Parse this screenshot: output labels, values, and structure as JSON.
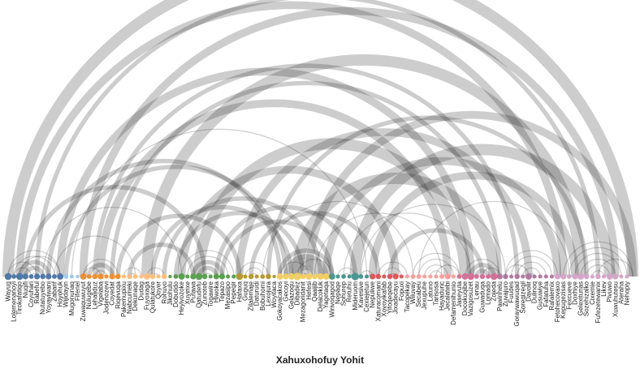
{
  "title": "Xahuxohofuy Yohit",
  "colors": {
    "arc": "#1a1a1a",
    "groups": [
      "#4e79a7",
      "#f28e2b",
      "#a0cbe8",
      "#ffbe7d",
      "#59a14f",
      "#b6992d",
      "#f1ce63",
      "#499894",
      "#e15759",
      "#ff9d9a",
      "#d37295",
      "#b07aa1",
      "#d4a6c8"
    ]
  },
  "nodes": [
    {
      "label": "Wayug",
      "group": 0
    },
    {
      "label": "Lolemenanoyi",
      "group": 0
    },
    {
      "label": "Tirokafatiqo",
      "group": 0
    },
    {
      "label": "Nuqifi",
      "group": 0
    },
    {
      "label": "Coyuhari",
      "group": 0
    },
    {
      "label": "Rabeful",
      "group": 0
    },
    {
      "label": "Nutatuyebo",
      "group": 0
    },
    {
      "label": "Yoyaviwani",
      "group": 0
    },
    {
      "label": "Zabarif",
      "group": 0
    },
    {
      "label": "Hoyohuk",
      "group": 0
    },
    {
      "label": "Wijidayin",
      "group": 2
    },
    {
      "label": "Mugonunaq",
      "group": 2
    },
    {
      "label": "Fifenel",
      "group": 2
    },
    {
      "label": "Zuwaquwuyut",
      "group": 1
    },
    {
      "label": "Nulugebe",
      "group": 1
    },
    {
      "label": "Lehaliduz",
      "group": 1
    },
    {
      "label": "Vigelaba",
      "group": 1
    },
    {
      "label": "Jodenozevi",
      "group": 1
    },
    {
      "label": "Coyedat",
      "group": 1
    },
    {
      "label": "Riqevuqa",
      "group": 1
    },
    {
      "label": "Pakemupixu",
      "group": 3
    },
    {
      "label": "Nabcumeki",
      "group": 3
    },
    {
      "label": "Dekunaqe",
      "group": 3
    },
    {
      "label": "Dudag",
      "group": 3
    },
    {
      "label": "Fuyoxaga",
      "group": 3
    },
    {
      "label": "Qulatukore",
      "group": 3
    },
    {
      "label": "Qoyer",
      "group": 3
    },
    {
      "label": "Rohuvo",
      "group": 3
    },
    {
      "label": "Jikohulu",
      "group": 4
    },
    {
      "label": "Dobutido",
      "group": 4
    },
    {
      "label": "Heyivozoke",
      "group": 4
    },
    {
      "label": "Xuyirixe",
      "group": 4
    },
    {
      "label": "Pufawa",
      "group": 4
    },
    {
      "label": "Qatudefu",
      "group": 4
    },
    {
      "label": "Zunoteb",
      "group": 4
    },
    {
      "label": "Togawire",
      "group": 4
    },
    {
      "label": "Hiwoka",
      "group": 4
    },
    {
      "label": "Tepazo",
      "group": 4
    },
    {
      "label": "Mezasipo",
      "group": 4
    },
    {
      "label": "Pepeqir",
      "group": 4
    },
    {
      "label": "Hafaxa",
      "group": 5
    },
    {
      "label": "Guguq",
      "group": 5
    },
    {
      "label": "Zilalemaje",
      "group": 5
    },
    {
      "label": "Daturudi",
      "group": 5
    },
    {
      "label": "Bobuhomi",
      "group": 5
    },
    {
      "label": "Lexojura",
      "group": 5
    },
    {
      "label": "Woyitaca",
      "group": 5
    },
    {
      "label": "Gokoyacakos",
      "group": 6
    },
    {
      "label": "Gecoyi",
      "group": 6
    },
    {
      "label": "Gelazoqu",
      "group": 6
    },
    {
      "label": "Dibadez",
      "group": 6
    },
    {
      "label": "Mezagoridanit",
      "group": 6
    },
    {
      "label": "Hefesi",
      "group": 6
    },
    {
      "label": "Qaaijib",
      "group": 6
    },
    {
      "label": "Delacokuk",
      "group": 6
    },
    {
      "label": "Yagetaqa",
      "group": 6
    },
    {
      "label": "Wirivoqagod",
      "group": 7
    },
    {
      "label": "Nepaqe",
      "group": 7
    },
    {
      "label": "Sohurep",
      "group": 7
    },
    {
      "label": "Retuhu",
      "group": 7
    },
    {
      "label": "Mideruom",
      "group": 7
    },
    {
      "label": "Kavesive",
      "group": 7
    },
    {
      "label": "Cexiejetun",
      "group": 7
    },
    {
      "label": "Nepuliwe",
      "group": 8
    },
    {
      "label": "Xaturacomani",
      "group": 8
    },
    {
      "label": "Xovoyikafab",
      "group": 8
    },
    {
      "label": "Yifoqeqebe",
      "group": 8
    },
    {
      "label": "Jixadecayu",
      "group": 8
    },
    {
      "label": "Fopuxi",
      "group": 8
    },
    {
      "label": "Tacopekay",
      "group": 9
    },
    {
      "label": "Wiluvay",
      "group": 9
    },
    {
      "label": "Secabeu",
      "group": 9
    },
    {
      "label": "Jexupuhe",
      "group": 9
    },
    {
      "label": "Latuno",
      "group": 9
    },
    {
      "label": "Tarisosa",
      "group": 9
    },
    {
      "label": "Hayaduric",
      "group": 9
    },
    {
      "label": "Jecalatebi",
      "group": 9
    },
    {
      "label": "Defamenihunio",
      "group": 9
    },
    {
      "label": "Jaseyuta",
      "group": 10
    },
    {
      "label": "Docokuqibe",
      "group": 10
    },
    {
      "label": "Vazigosuzet",
      "group": 10
    },
    {
      "label": "Lenau",
      "group": 10
    },
    {
      "label": "Guwaduqa",
      "group": 10
    },
    {
      "label": "Lomado",
      "group": 10
    },
    {
      "label": "Zojeda",
      "group": 10
    },
    {
      "label": "Pawinhelu",
      "group": 11
    },
    {
      "label": "Zuvajuro",
      "group": 11
    },
    {
      "label": "Fuudes",
      "group": 11
    },
    {
      "label": "Goraywawuqad",
      "group": 11
    },
    {
      "label": "Soreqizeqil",
      "group": 11
    },
    {
      "label": "Davolir",
      "group": 11
    },
    {
      "label": "Dulinoq",
      "group": 11
    },
    {
      "label": "Gusuwiye",
      "group": 11
    },
    {
      "label": "Fafatuha",
      "group": 11
    },
    {
      "label": "Rafalemix",
      "group": 11
    },
    {
      "label": "Fetohecovaxo",
      "group": 12
    },
    {
      "label": "Kepugezisas",
      "group": 12
    },
    {
      "label": "Fexcueve",
      "group": 12
    },
    {
      "label": "Doxhiye",
      "group": 12
    },
    {
      "label": "Gelexitunas",
      "group": 12
    },
    {
      "label": "Sozehizalko",
      "group": 12
    },
    {
      "label": "Cixemie",
      "group": 12
    },
    {
      "label": "Fufezetewanix",
      "group": 12
    },
    {
      "label": "Likev",
      "group": 12
    },
    {
      "label": "Pivuwo",
      "group": 12
    },
    {
      "label": "Xuwuhutesu",
      "group": 12
    },
    {
      "label": "Ateraha",
      "group": 12
    },
    {
      "label": "Nehopiy",
      "group": 12
    }
  ],
  "links": [
    [
      0,
      9,
      1
    ],
    [
      1,
      8,
      1
    ],
    [
      2,
      7,
      2
    ],
    [
      3,
      6,
      2
    ],
    [
      4,
      5,
      1
    ],
    [
      0,
      5,
      1
    ],
    [
      2,
      9,
      1
    ],
    [
      1,
      4,
      1
    ],
    [
      13,
      19,
      1
    ],
    [
      14,
      18,
      2
    ],
    [
      15,
      17,
      1
    ],
    [
      13,
      16,
      1
    ],
    [
      20,
      23,
      1
    ],
    [
      21,
      22,
      1
    ],
    [
      24,
      27,
      1
    ],
    [
      25,
      26,
      1
    ],
    [
      31,
      38,
      1
    ],
    [
      32,
      37,
      2
    ],
    [
      33,
      36,
      2
    ],
    [
      34,
      35,
      1
    ],
    [
      30,
      39,
      1
    ],
    [
      40,
      45,
      1
    ],
    [
      41,
      44,
      1
    ],
    [
      42,
      43,
      1
    ],
    [
      47,
      56,
      2
    ],
    [
      48,
      55,
      2
    ],
    [
      49,
      54,
      3
    ],
    [
      50,
      53,
      2
    ],
    [
      51,
      52,
      1
    ],
    [
      47,
      52,
      1
    ],
    [
      50,
      56,
      1
    ],
    [
      57,
      60,
      1
    ],
    [
      58,
      59,
      1
    ],
    [
      61,
      63,
      1
    ],
    [
      64,
      69,
      1
    ],
    [
      65,
      68,
      1
    ],
    [
      66,
      67,
      1
    ],
    [
      70,
      78,
      1
    ],
    [
      71,
      77,
      1
    ],
    [
      72,
      76,
      1
    ],
    [
      73,
      75,
      1
    ],
    [
      74,
      78,
      1
    ],
    [
      79,
      85,
      1
    ],
    [
      80,
      84,
      2
    ],
    [
      81,
      83,
      2
    ],
    [
      82,
      85,
      1
    ],
    [
      86,
      95,
      1
    ],
    [
      87,
      94,
      1
    ],
    [
      88,
      93,
      1
    ],
    [
      89,
      92,
      1
    ],
    [
      90,
      91,
      1
    ],
    [
      86,
      90,
      1
    ],
    [
      96,
      108,
      1
    ],
    [
      97,
      107,
      1
    ],
    [
      98,
      106,
      1
    ],
    [
      99,
      105,
      1
    ],
    [
      100,
      104,
      1
    ],
    [
      101,
      103,
      1
    ],
    [
      102,
      108,
      1
    ],
    [
      0,
      108,
      4
    ],
    [
      2,
      96,
      3
    ],
    [
      5,
      102,
      2
    ],
    [
      9,
      80,
      3
    ],
    [
      13,
      105,
      3
    ],
    [
      18,
      85,
      2
    ],
    [
      24,
      99,
      4
    ],
    [
      30,
      67,
      3
    ],
    [
      33,
      79,
      4
    ],
    [
      36,
      60,
      2
    ],
    [
      40,
      90,
      3
    ],
    [
      45,
      100,
      2
    ],
    [
      50,
      84,
      4
    ],
    [
      52,
      108,
      3
    ],
    [
      55,
      95,
      3
    ],
    [
      60,
      104,
      4
    ],
    [
      63,
      98,
      3
    ],
    [
      66,
      82,
      2
    ],
    [
      10,
      48,
      2
    ],
    [
      19,
      40,
      2
    ],
    [
      27,
      54,
      2
    ],
    [
      3,
      34,
      2
    ],
    [
      7,
      47,
      2
    ],
    [
      16,
      76,
      3
    ],
    [
      21,
      32,
      2
    ],
    [
      58,
      80,
      1
    ],
    [
      44,
      70,
      1
    ],
    [
      11,
      62,
      1
    ],
    [
      37,
      56,
      2
    ],
    [
      6,
      30,
      1
    ],
    [
      29,
      51,
      2
    ],
    [
      42,
      64,
      2
    ],
    [
      15,
      88,
      2
    ],
    [
      25,
      49,
      2
    ],
    [
      71,
      97,
      1
    ],
    [
      8,
      22,
      1
    ],
    [
      53,
      75,
      1
    ],
    [
      61,
      86,
      1
    ]
  ]
}
